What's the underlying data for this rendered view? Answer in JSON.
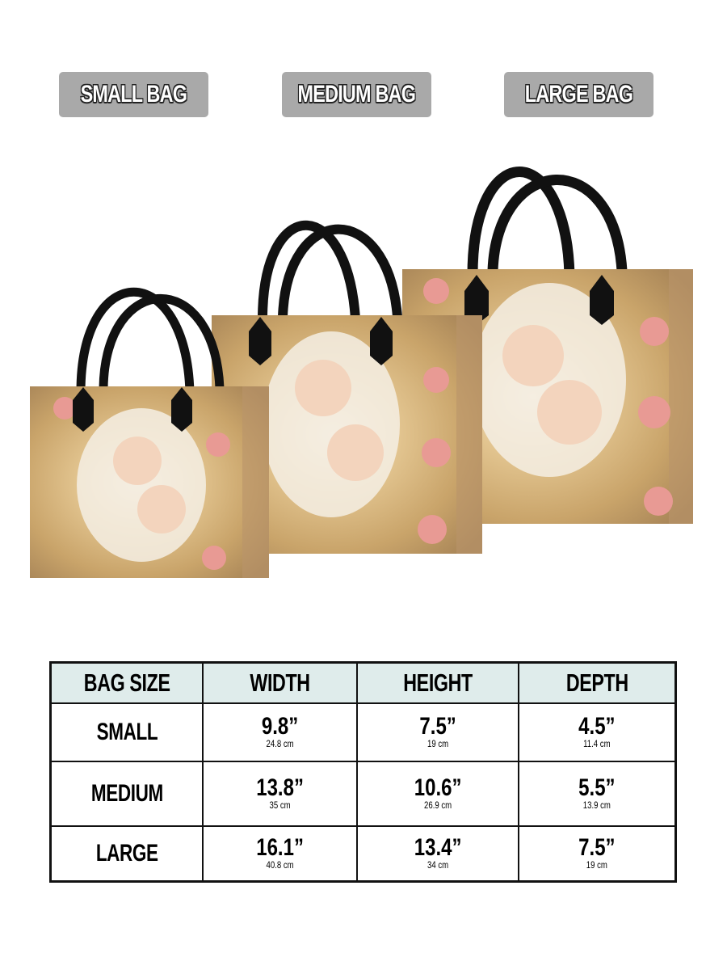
{
  "labels": {
    "small": "SMALL BAG",
    "medium": "MEDIUM BAG",
    "large": "LARGE BAG"
  },
  "colors": {
    "label_bg": "#a9a9a9",
    "header_bg": "#dfeceb",
    "handle": "#111111",
    "bag_print": "#c9a46a"
  },
  "size_table": {
    "headers": [
      "BAG SIZE",
      "WIDTH",
      "HEIGHT",
      "DEPTH"
    ],
    "rows": [
      {
        "size": "SMALL",
        "width": "9.8”",
        "width_cm": "24.8 cm",
        "height": "7.5”",
        "height_cm": "19 cm",
        "depth": "4.5”",
        "depth_cm": "11.4 cm"
      },
      {
        "size": "MEDIUM",
        "width": "13.8”",
        "width_cm": "35 cm",
        "height": "10.6”",
        "height_cm": "26.9 cm",
        "depth": "5.5”",
        "depth_cm": "13.9 cm"
      },
      {
        "size": "LARGE",
        "width": "16.1”",
        "width_cm": "40.8 cm",
        "height": "13.4”",
        "height_cm": "34 cm",
        "depth": "7.5”",
        "depth_cm": "19 cm"
      }
    ]
  }
}
